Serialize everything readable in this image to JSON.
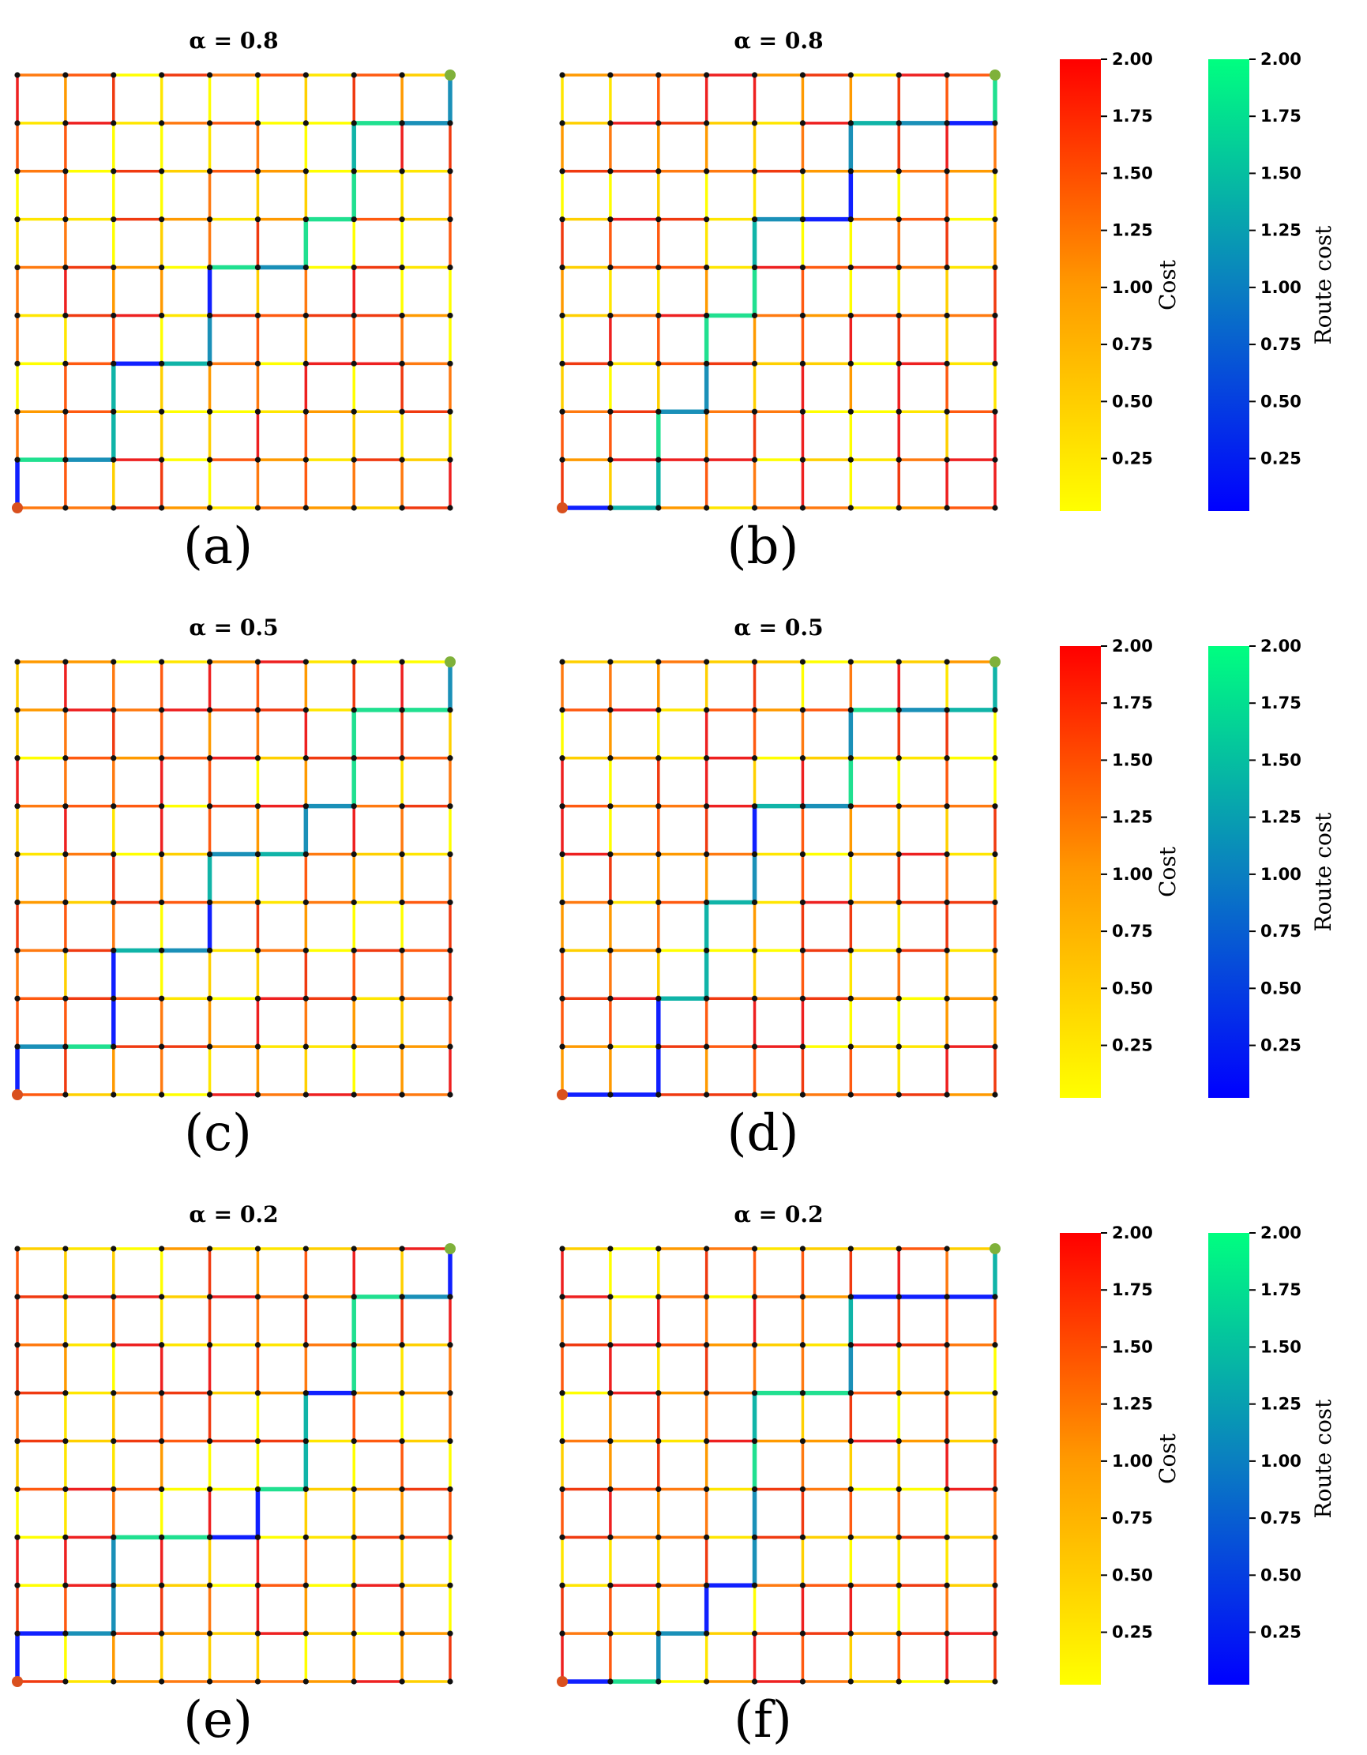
{
  "figure": {
    "grid_size": 10,
    "start_node_color": "#d9501e",
    "goal_node_color": "#7fb13a",
    "colorbars": {
      "cost": {
        "label": "Cost",
        "ticks": [
          "0.25",
          "0.50",
          "0.75",
          "1.00",
          "1.25",
          "1.50",
          "1.75",
          "2.00"
        ],
        "colors": [
          "#ffff00",
          "#ff0000"
        ]
      },
      "route": {
        "label": "Route cost",
        "ticks": [
          "0.25",
          "0.50",
          "0.75",
          "1.00",
          "1.25",
          "1.50",
          "1.75",
          "2.00"
        ],
        "colors": [
          "#0000ff",
          "#00ff80"
        ]
      }
    },
    "panels": [
      {
        "id": "a",
        "title": "α = 0.8",
        "label": "(a)",
        "route": [
          [
            0,
            0
          ],
          [
            0,
            1
          ],
          [
            1,
            1
          ],
          [
            2,
            1
          ],
          [
            2,
            2
          ],
          [
            2,
            3
          ],
          [
            3,
            3
          ],
          [
            4,
            3
          ],
          [
            4,
            4
          ],
          [
            4,
            5
          ],
          [
            5,
            5
          ],
          [
            6,
            5
          ],
          [
            6,
            6
          ],
          [
            7,
            6
          ],
          [
            7,
            7
          ],
          [
            7,
            8
          ],
          [
            8,
            8
          ],
          [
            9,
            8
          ],
          [
            9,
            9
          ]
        ]
      },
      {
        "id": "b",
        "title": "α = 0.8",
        "label": "(b)",
        "route": [
          [
            0,
            0
          ],
          [
            1,
            0
          ],
          [
            2,
            0
          ],
          [
            2,
            1
          ],
          [
            2,
            2
          ],
          [
            3,
            2
          ],
          [
            3,
            3
          ],
          [
            3,
            4
          ],
          [
            4,
            4
          ],
          [
            4,
            5
          ],
          [
            4,
            6
          ],
          [
            5,
            6
          ],
          [
            6,
            6
          ],
          [
            6,
            7
          ],
          [
            6,
            8
          ],
          [
            7,
            8
          ],
          [
            8,
            8
          ],
          [
            9,
            8
          ],
          [
            9,
            9
          ]
        ]
      },
      {
        "id": "c",
        "title": "α = 0.5",
        "label": "(c)",
        "route": [
          [
            0,
            0
          ],
          [
            0,
            1
          ],
          [
            1,
            1
          ],
          [
            2,
            1
          ],
          [
            2,
            2
          ],
          [
            2,
            3
          ],
          [
            3,
            3
          ],
          [
            4,
            3
          ],
          [
            4,
            4
          ],
          [
            4,
            5
          ],
          [
            5,
            5
          ],
          [
            6,
            5
          ],
          [
            6,
            6
          ],
          [
            7,
            6
          ],
          [
            7,
            7
          ],
          [
            7,
            8
          ],
          [
            8,
            8
          ],
          [
            9,
            8
          ],
          [
            9,
            9
          ]
        ]
      },
      {
        "id": "d",
        "title": "α = 0.5",
        "label": "(d)",
        "route": [
          [
            0,
            0
          ],
          [
            1,
            0
          ],
          [
            2,
            0
          ],
          [
            2,
            1
          ],
          [
            2,
            2
          ],
          [
            3,
            2
          ],
          [
            3,
            3
          ],
          [
            3,
            4
          ],
          [
            4,
            4
          ],
          [
            4,
            5
          ],
          [
            4,
            6
          ],
          [
            5,
            6
          ],
          [
            6,
            6
          ],
          [
            6,
            7
          ],
          [
            6,
            8
          ],
          [
            7,
            8
          ],
          [
            8,
            8
          ],
          [
            9,
            8
          ],
          [
            9,
            9
          ]
        ]
      },
      {
        "id": "e",
        "title": "α = 0.2",
        "label": "(e)",
        "route": [
          [
            0,
            0
          ],
          [
            0,
            1
          ],
          [
            1,
            1
          ],
          [
            2,
            1
          ],
          [
            2,
            2
          ],
          [
            2,
            3
          ],
          [
            3,
            3
          ],
          [
            4,
            3
          ],
          [
            5,
            3
          ],
          [
            5,
            4
          ],
          [
            6,
            4
          ],
          [
            6,
            5
          ],
          [
            6,
            6
          ],
          [
            7,
            6
          ],
          [
            7,
            7
          ],
          [
            7,
            8
          ],
          [
            8,
            8
          ],
          [
            9,
            8
          ],
          [
            9,
            9
          ]
        ]
      },
      {
        "id": "f",
        "title": "α = 0.2",
        "label": "(f)",
        "route": [
          [
            0,
            0
          ],
          [
            1,
            0
          ],
          [
            2,
            0
          ],
          [
            2,
            1
          ],
          [
            3,
            1
          ],
          [
            3,
            2
          ],
          [
            4,
            2
          ],
          [
            4,
            3
          ],
          [
            4,
            4
          ],
          [
            4,
            5
          ],
          [
            4,
            6
          ],
          [
            5,
            6
          ],
          [
            6,
            6
          ],
          [
            6,
            7
          ],
          [
            6,
            8
          ],
          [
            7,
            8
          ],
          [
            8,
            8
          ],
          [
            9,
            8
          ],
          [
            9,
            9
          ]
        ]
      }
    ]
  }
}
